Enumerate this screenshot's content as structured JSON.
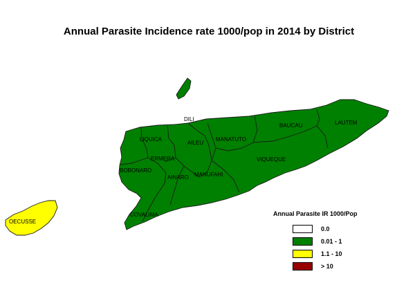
{
  "title": "Annual Parasite Incidence rate 1000/pop in 2014 by District",
  "colors": {
    "none": "#ffffff",
    "low": "#008000",
    "medium": "#ffff00",
    "high": "#990000",
    "border": "#1a1a1a"
  },
  "districts": [
    {
      "name": "DILI",
      "category": "0.01 - 1"
    },
    {
      "name": "LIQUICA",
      "category": "0.01 - 1"
    },
    {
      "name": "AILEU",
      "category": "0.01 - 1"
    },
    {
      "name": "MANATUTO",
      "category": "0.01 - 1"
    },
    {
      "name": "BAUCAU",
      "category": "0.01 - 1"
    },
    {
      "name": "LAUTEM",
      "category": "0.01 - 1"
    },
    {
      "name": "ERMERA",
      "category": "0.01 - 1"
    },
    {
      "name": "BOBONARO",
      "category": "0.01 - 1"
    },
    {
      "name": "AINARO",
      "category": "0.01 - 1"
    },
    {
      "name": "MANUFAHI",
      "category": "0.01 - 1"
    },
    {
      "name": "VIQUEQUE",
      "category": "0.01 - 1"
    },
    {
      "name": "COVALIMA",
      "category": "0.01 - 1"
    },
    {
      "name": "OECUSSE",
      "category": "1.1 - 10"
    }
  ],
  "legend": {
    "title": "Annual Parasite IR 1000/Pop",
    "items": [
      {
        "label": "0.0",
        "color": "#ffffff"
      },
      {
        "label": "0.01 - 1",
        "color": "#008000"
      },
      {
        "label": "1.1 - 10",
        "color": "#ffff00"
      },
      {
        "label": "> 10",
        "color": "#990000"
      }
    ]
  }
}
